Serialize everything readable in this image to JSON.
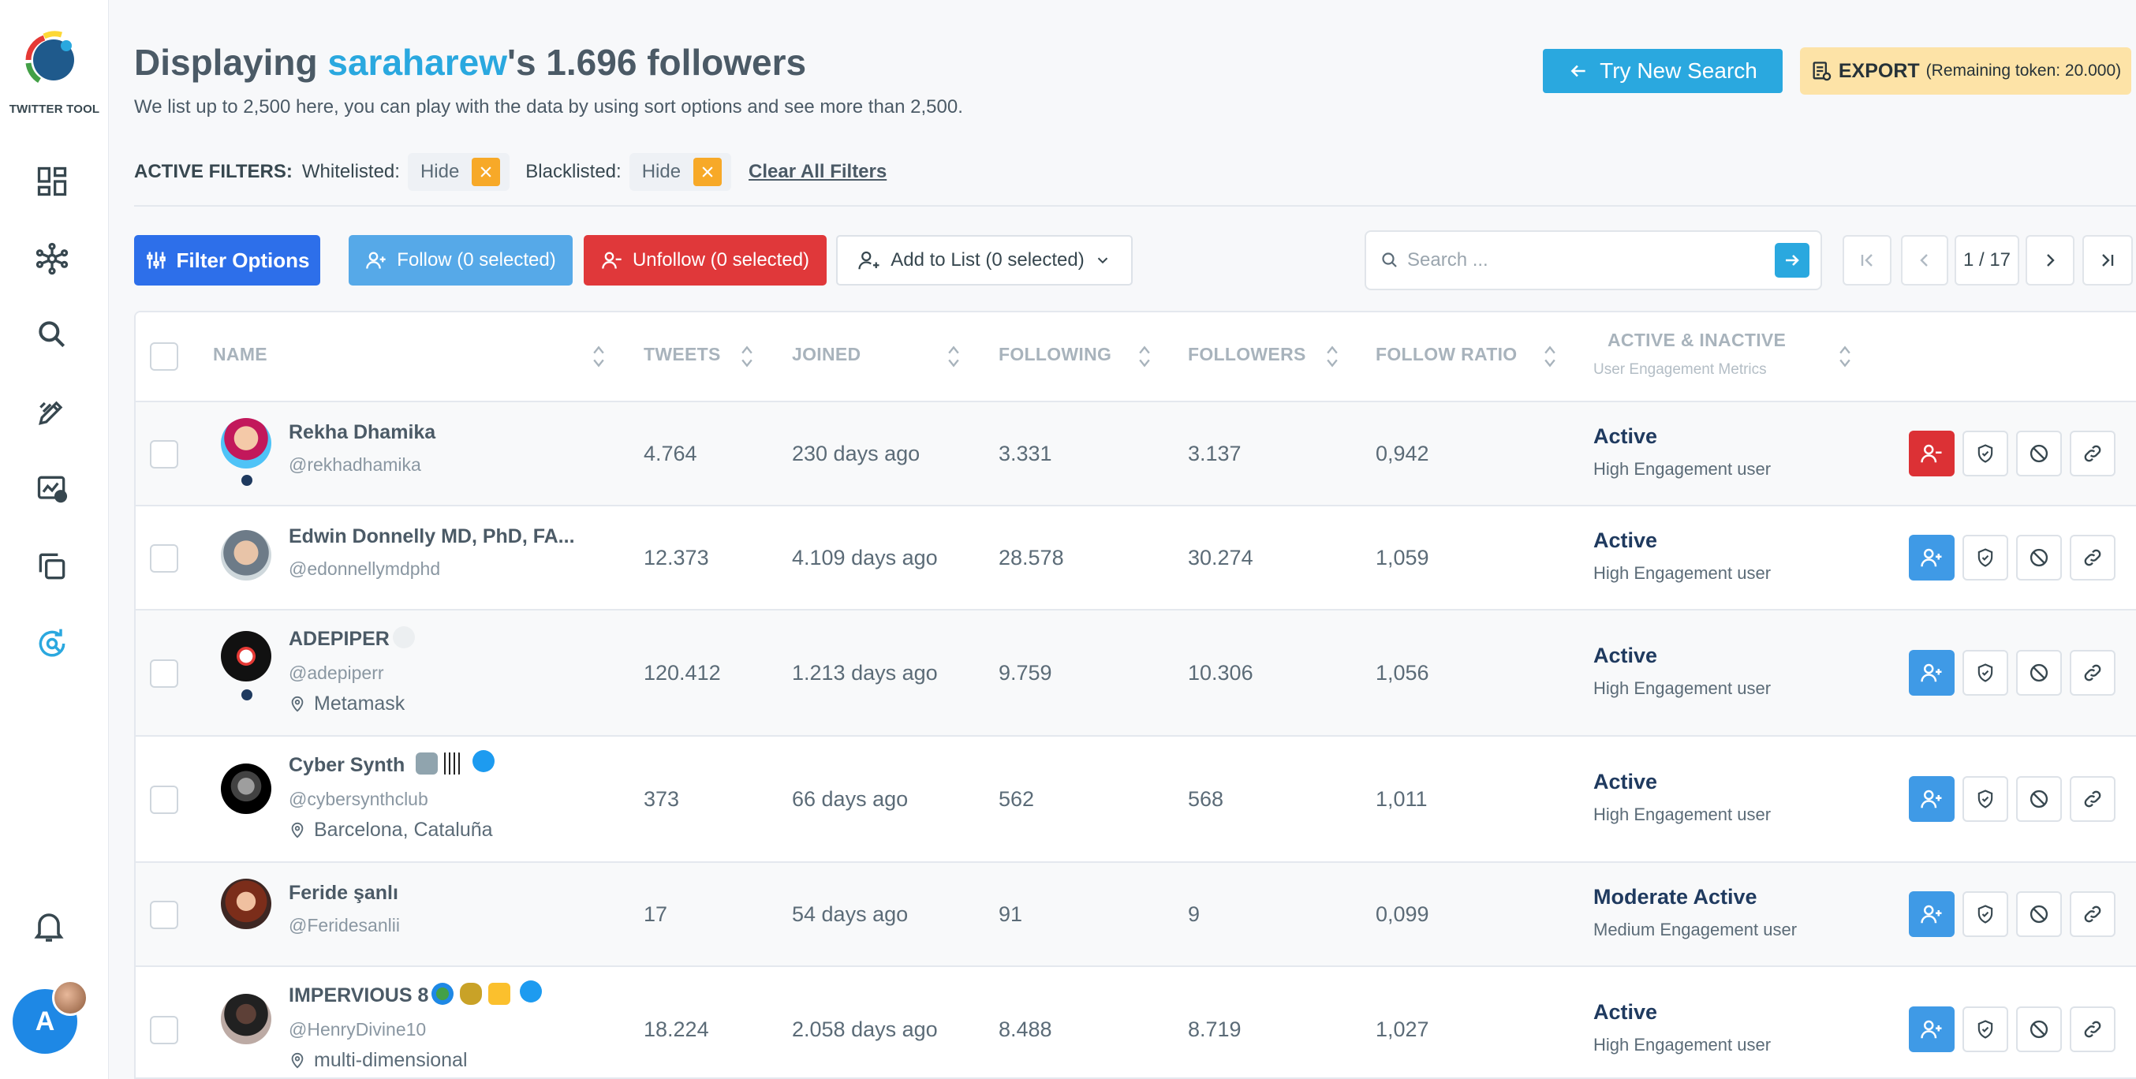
{
  "app": {
    "logo_text": "TWITTER TOOL",
    "avatar_letter": "A"
  },
  "sidebar": {
    "items": [
      {
        "name": "dashboard-icon"
      },
      {
        "name": "network-icon"
      },
      {
        "name": "search-icon"
      },
      {
        "name": "edit-icon"
      },
      {
        "name": "analytics-icon"
      },
      {
        "name": "copy-icon"
      },
      {
        "name": "refresh-search-icon"
      }
    ],
    "bottom": [
      {
        "name": "bell-icon"
      }
    ]
  },
  "header": {
    "title_prefix": "Displaying ",
    "title_user": "saraharew",
    "title_suffix": "'s 1.696 followers",
    "subtitle": "We list up to 2,500 here, you can play with the data by using sort options and see more than 2,500.",
    "new_search_label": "Try New Search",
    "export_label": "EXPORT",
    "export_tokens": "(Remaining token: 20.000)"
  },
  "filters": {
    "label": "ACTIVE FILTERS:",
    "whitelisted_label": "Whitelisted:",
    "whitelisted_value": "Hide",
    "blacklisted_label": "Blacklisted:",
    "blacklisted_value": "Hide",
    "clear_label": "Clear All Filters"
  },
  "toolbar": {
    "filter_options": "Filter Options",
    "follow": "Follow (0 selected)",
    "unfollow": "Unfollow (0 selected)",
    "add_to_list": "Add to List (0 selected)",
    "search_placeholder": "Search ...",
    "page": "1 / 17"
  },
  "table": {
    "columns": {
      "name": "NAME",
      "tweets": "TWEETS",
      "joined": "JOINED",
      "following": "FOLLOWING",
      "followers": "FOLLOWERS",
      "ratio": "FOLLOW RATIO",
      "activity": "ACTIVE & INACTIVE",
      "activity_sub": "User Engagement Metrics"
    },
    "rows": [
      {
        "name": "Rekha Dhamika",
        "handle": "@rekhadhamika",
        "location": "",
        "tweets": "4.764",
        "joined": "230 days ago",
        "following": "3.331",
        "followers": "3.137",
        "ratio": "0,942",
        "status": "Active",
        "engagement": "High Engagement user"
      },
      {
        "name": "Edwin Donnelly MD, PhD, FA...",
        "handle": "@edonnellymdphd",
        "location": "",
        "tweets": "12.373",
        "joined": "4.109 days ago",
        "following": "28.578",
        "followers": "30.274",
        "ratio": "1,059",
        "status": "Active",
        "engagement": "High Engagement user"
      },
      {
        "name": "ADEPIPER",
        "handle": "@adepiperr",
        "location": "Metamask",
        "tweets": "120.412",
        "joined": "1.213 days ago",
        "following": "9.759",
        "followers": "10.306",
        "ratio": "1,056",
        "status": "Active",
        "engagement": "High Engagement user"
      },
      {
        "name": "Cyber Synth",
        "handle": "@cybersynthclub",
        "location": "Barcelona, Cataluña",
        "tweets": "373",
        "joined": "66 days ago",
        "following": "562",
        "followers": "568",
        "ratio": "1,011",
        "status": "Active",
        "engagement": "High Engagement user"
      },
      {
        "name": "Feride şanlı",
        "handle": "@Feridesanlii",
        "location": "",
        "tweets": "17",
        "joined": "54 days ago",
        "following": "91",
        "followers": "9",
        "ratio": "0,099",
        "status": "Moderate Active",
        "engagement": "Medium Engagement user"
      },
      {
        "name": "IMPERVIOUS 8",
        "handle": "@HenryDivine10",
        "location": "multi-dimensional",
        "tweets": "18.224",
        "joined": "2.058 days ago",
        "following": "8.488",
        "followers": "8.719",
        "ratio": "1,027",
        "status": "Active",
        "engagement": "High Engagement user"
      }
    ]
  },
  "colors": {
    "accent": "#2aa8df",
    "primary": "#2d6fea",
    "danger": "#e0383a",
    "warning": "#f7a928",
    "export_bg": "#fde3a7"
  }
}
